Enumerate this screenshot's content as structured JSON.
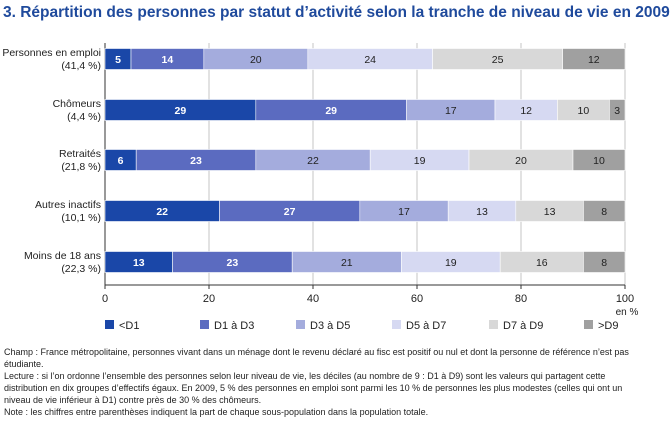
{
  "title": "3. Répartition des personnes par statut d’activité selon la tranche de niveau de vie en 2009",
  "colors": {
    "title": "#1f4a9c",
    "segments": [
      "#1a47a8",
      "#5b6bc0",
      "#a4acdd",
      "#d6d9f2",
      "#d8d8d8",
      "#a0a0a0"
    ],
    "text_dark": "#ffffff",
    "text_light": "#222222",
    "grid": "#b8b8b8"
  },
  "chart_data": {
    "type": "bar",
    "orientation": "horizontal",
    "stacked": true,
    "categories": [
      [
        "Personnes en emploi",
        "(41,4 %)"
      ],
      [
        "Chômeurs",
        "(4,4 %)"
      ],
      [
        "Retraités",
        "(21,8 %)"
      ],
      [
        "Autres inactifs",
        "(10,1 %)"
      ],
      [
        "Moins de 18 ans",
        "(22,3 %)"
      ]
    ],
    "series": [
      {
        "name": "<D1",
        "values": [
          5,
          29,
          6,
          22,
          13
        ],
        "labels": [
          "5",
          "29",
          "6",
          "22",
          "13"
        ]
      },
      {
        "name": "D1 à D3",
        "values": [
          14,
          29,
          23,
          27,
          23
        ],
        "labels": [
          "14",
          "29",
          "23",
          "27",
          "23"
        ]
      },
      {
        "name": "D3 à D5",
        "values": [
          20,
          17,
          22,
          17,
          21
        ],
        "labels": [
          "20",
          "17",
          "22",
          "17",
          "21"
        ]
      },
      {
        "name": "D5 à D7",
        "values": [
          24,
          12,
          19,
          13,
          19
        ],
        "labels": [
          "24",
          "12",
          "19",
          "13",
          "19"
        ]
      },
      {
        "name": "D7 à D9",
        "values": [
          25,
          10,
          20,
          13,
          16
        ],
        "labels": [
          "25",
          "10",
          "20",
          "13",
          "16"
        ]
      },
      {
        "name": ">D9",
        "values": [
          12,
          3,
          10,
          8,
          8
        ],
        "labels": [
          "12",
          "3",
          "10",
          "8",
          "8"
        ]
      }
    ],
    "xlim": [
      0,
      100
    ],
    "xticks": [
      "0",
      "20",
      "40",
      "60",
      "80",
      "100"
    ],
    "xunit": "en %",
    "grid": true,
    "legend_position": "bottom"
  },
  "notes": {
    "champ": "Champ : France métropolitaine, personnes vivant dans un ménage dont le revenu déclaré au fisc est positif ou nul et dont la personne de référence n’est pas étudiante.",
    "lecture": "Lecture : si l’on ordonne l’ensemble des personnes selon leur niveau de vie, les déciles (au nombre de 9 : D1 à D9) sont les valeurs qui partagent cette distribution en dix groupes d’effectifs égaux. En 2009, 5 % des personnes en emploi sont parmi les 10 % de personnes les plus modestes (celles qui ont un niveau de vie inférieur à D1) contre près de 30 % des chômeurs.",
    "note": "Note : les chiffres entre parenthèses indiquent la part de chaque sous-population dans la population totale."
  }
}
